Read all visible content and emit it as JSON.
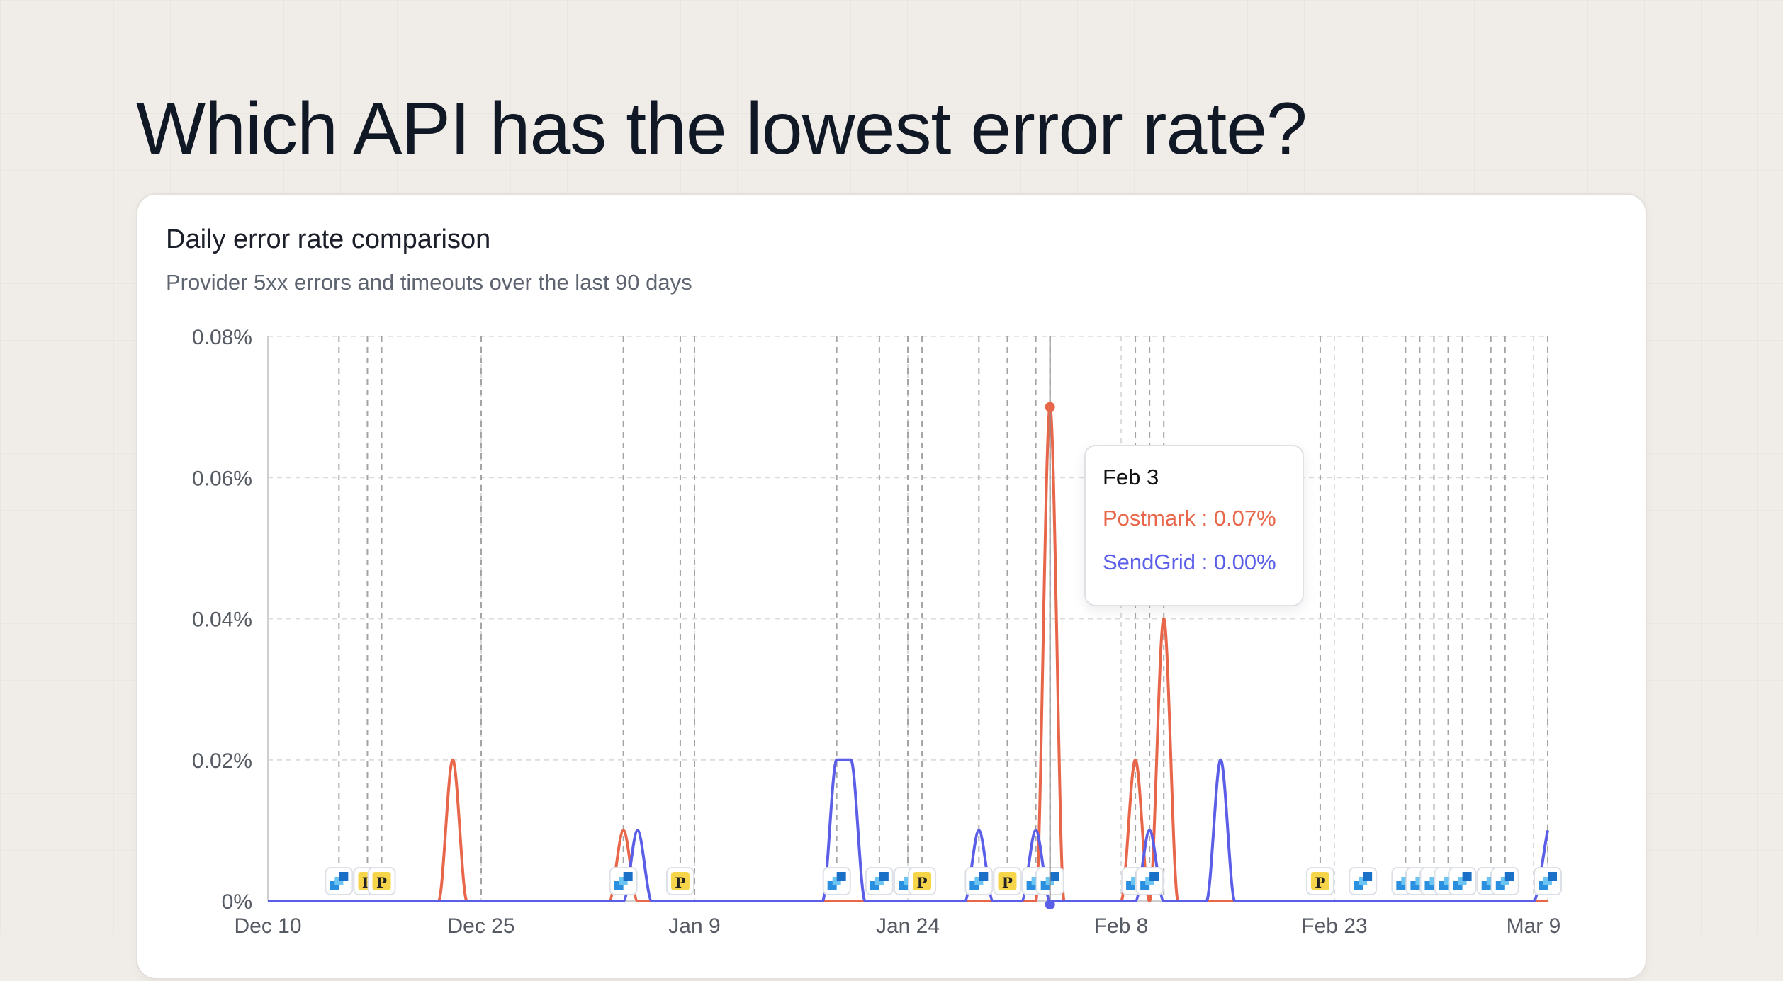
{
  "headline": "Which API has the lowest error rate?",
  "card": {
    "title": "Daily error rate comparison",
    "subtitle": "Provider 5xx errors and timeouts over the last 90 days"
  },
  "tooltip": {
    "date": "Feb 3",
    "rows": [
      {
        "series": "Postmark",
        "separator": " : ",
        "value": "0.07%"
      },
      {
        "series": "SendGrid",
        "separator": " : ",
        "value": "0.00%"
      }
    ]
  },
  "colors": {
    "postmark": "#e8664a",
    "sendgrid": "#5b5ee6",
    "postmark_badge": "#f7d54a",
    "sendgrid_badge": "#2b8fe0"
  },
  "icons": {
    "postmark_badge": "postmark-logo-icon",
    "sendgrid_badge": "sendgrid-logo-icon"
  },
  "chart_data": {
    "type": "line",
    "x": [
      "2024-12-10",
      "2024-12-11",
      "2024-12-12",
      "2024-12-13",
      "2024-12-14",
      "2024-12-15",
      "2024-12-16",
      "2024-12-17",
      "2024-12-18",
      "2024-12-19",
      "2024-12-20",
      "2024-12-21",
      "2024-12-22",
      "2024-12-23",
      "2024-12-24",
      "2024-12-25",
      "2024-12-26",
      "2024-12-27",
      "2024-12-28",
      "2024-12-29",
      "2024-12-30",
      "2024-12-31",
      "2025-01-01",
      "2025-01-02",
      "2025-01-03",
      "2025-01-04",
      "2025-01-05",
      "2025-01-06",
      "2025-01-07",
      "2025-01-08",
      "2025-01-09",
      "2025-01-10",
      "2025-01-11",
      "2025-01-12",
      "2025-01-13",
      "2025-01-14",
      "2025-01-15",
      "2025-01-16",
      "2025-01-17",
      "2025-01-18",
      "2025-01-19",
      "2025-01-20",
      "2025-01-21",
      "2025-01-22",
      "2025-01-23",
      "2025-01-24",
      "2025-01-25",
      "2025-01-26",
      "2025-01-27",
      "2025-01-28",
      "2025-01-29",
      "2025-01-30",
      "2025-01-31",
      "2025-02-01",
      "2025-02-02",
      "2025-02-03",
      "2025-02-04",
      "2025-02-05",
      "2025-02-06",
      "2025-02-07",
      "2025-02-08",
      "2025-02-09",
      "2025-02-10",
      "2025-02-11",
      "2025-02-12",
      "2025-02-13",
      "2025-02-14",
      "2025-02-15",
      "2025-02-16",
      "2025-02-17",
      "2025-02-18",
      "2025-02-19",
      "2025-02-20",
      "2025-02-21",
      "2025-02-22",
      "2025-02-23",
      "2025-02-24",
      "2025-02-25",
      "2025-02-26",
      "2025-02-27",
      "2025-02-28",
      "2025-03-01",
      "2025-03-02",
      "2025-03-03",
      "2025-03-04",
      "2025-03-05",
      "2025-03-06",
      "2025-03-07",
      "2025-03-08",
      "2025-03-09",
      "2025-03-10"
    ],
    "series": [
      {
        "name": "Postmark",
        "color": "#e8664a",
        "values": [
          0,
          0,
          0,
          0,
          0,
          0,
          0,
          0,
          0,
          0,
          0,
          0,
          0,
          0.02,
          0,
          0,
          0,
          0,
          0,
          0,
          0,
          0,
          0,
          0,
          0,
          0.01,
          0,
          0,
          0,
          0,
          0,
          0,
          0,
          0,
          0,
          0,
          0,
          0,
          0,
          0,
          0,
          0,
          0,
          0,
          0,
          0,
          0,
          0,
          0,
          0,
          0,
          0,
          0,
          0,
          0,
          0.07,
          0,
          0,
          0,
          0,
          0,
          0.02,
          0,
          0.04,
          0,
          0,
          0,
          0,
          0,
          0,
          0,
          0,
          0,
          0,
          0,
          0,
          0,
          0,
          0,
          0,
          0,
          0,
          0,
          0,
          0,
          0,
          0,
          0,
          0,
          0,
          0
        ]
      },
      {
        "name": "SendGrid",
        "color": "#5b5ee6",
        "values": [
          0,
          0,
          0,
          0,
          0,
          0,
          0,
          0,
          0,
          0,
          0,
          0,
          0,
          0,
          0,
          0,
          0,
          0,
          0,
          0,
          0,
          0,
          0,
          0,
          0,
          0,
          0.01,
          0,
          0,
          0,
          0,
          0,
          0,
          0,
          0,
          0,
          0,
          0,
          0,
          0,
          0.02,
          0.02,
          0,
          0,
          0,
          0,
          0,
          0,
          0,
          0,
          0.01,
          0,
          0,
          0,
          0.01,
          0,
          0,
          0,
          0,
          0,
          0,
          0,
          0.01,
          0,
          0,
          0,
          0,
          0.02,
          0,
          0,
          0,
          0,
          0,
          0,
          0,
          0,
          0,
          0,
          0,
          0,
          0,
          0,
          0,
          0,
          0,
          0,
          0,
          0,
          0,
          0,
          0.01
        ]
      }
    ],
    "x_ticks": [
      "Dec 10",
      "Dec 25",
      "Jan 9",
      "Jan 24",
      "Feb 8",
      "Feb 23",
      "Mar 9"
    ],
    "x_tick_dates": [
      "2024-12-10",
      "2024-12-25",
      "2025-01-09",
      "2025-01-24",
      "2025-02-08",
      "2025-02-23",
      "2025-03-09"
    ],
    "y_ticks": [
      "0%",
      "0.02%",
      "0.04%",
      "0.06%",
      "0.08%"
    ],
    "y_tick_values": [
      0,
      0.02,
      0.04,
      0.06,
      0.08
    ],
    "ylim": [
      0,
      0.08
    ],
    "grid": true,
    "hover_date": "2025-02-03",
    "events": [
      {
        "date": "2024-12-15",
        "provider": "sendgrid"
      },
      {
        "date": "2024-12-17",
        "provider": "postmark"
      },
      {
        "date": "2024-12-18",
        "provider": "postmark"
      },
      {
        "date": "2024-12-25",
        "provider": ""
      },
      {
        "date": "2025-01-04",
        "provider": "sendgrid"
      },
      {
        "date": "2025-01-08",
        "provider": "postmark"
      },
      {
        "date": "2025-01-09",
        "provider": ""
      },
      {
        "date": "2025-01-19",
        "provider": "sendgrid"
      },
      {
        "date": "2025-01-22",
        "provider": "sendgrid"
      },
      {
        "date": "2025-01-24",
        "provider": "sendgrid"
      },
      {
        "date": "2025-01-25",
        "provider": "postmark"
      },
      {
        "date": "2025-01-29",
        "provider": "sendgrid"
      },
      {
        "date": "2025-01-31",
        "provider": "postmark"
      },
      {
        "date": "2025-02-02",
        "provider": "sendgrid"
      },
      {
        "date": "2025-02-03",
        "provider": "sendgrid"
      },
      {
        "date": "2025-02-09",
        "provider": "sendgrid"
      },
      {
        "date": "2025-02-10",
        "provider": "sendgrid"
      },
      {
        "date": "2025-02-11",
        "provider": ""
      },
      {
        "date": "2025-02-22",
        "provider": "postmark"
      },
      {
        "date": "2025-02-25",
        "provider": "sendgrid"
      },
      {
        "date": "2025-02-28",
        "provider": "sendgrid"
      },
      {
        "date": "2025-03-01",
        "provider": "sendgrid"
      },
      {
        "date": "2025-03-02",
        "provider": "sendgrid"
      },
      {
        "date": "2025-03-03",
        "provider": "sendgrid"
      },
      {
        "date": "2025-03-04",
        "provider": "sendgrid"
      },
      {
        "date": "2025-03-06",
        "provider": "sendgrid"
      },
      {
        "date": "2025-03-07",
        "provider": "sendgrid"
      },
      {
        "date": "2025-03-10",
        "provider": "sendgrid"
      }
    ]
  }
}
